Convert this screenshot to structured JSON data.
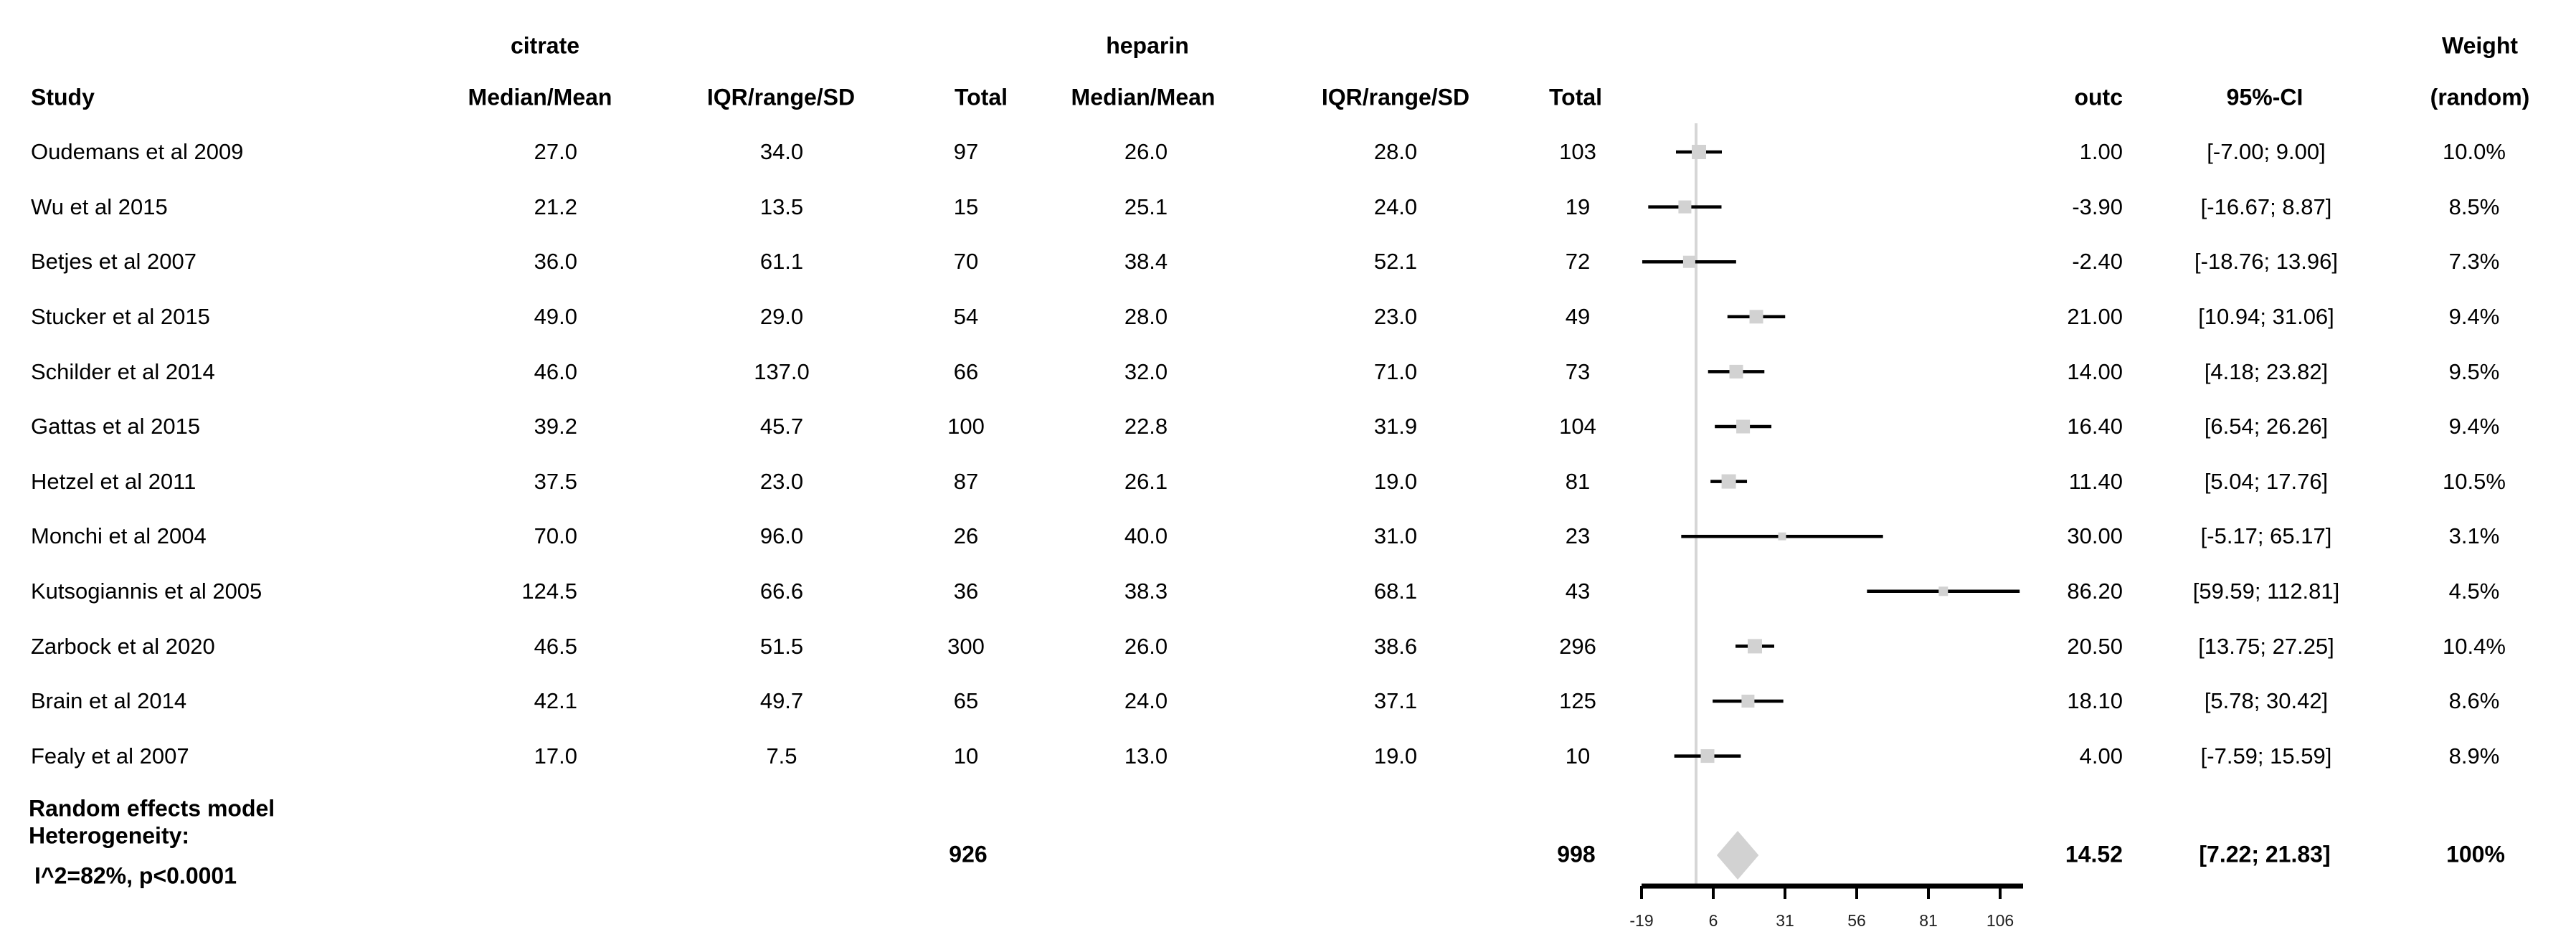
{
  "header": {
    "group_citrate": "citrate",
    "group_heparin": "heparin",
    "weight_line1": "Weight",
    "weight_line2": "(random)",
    "study": "Study",
    "citrate_median_mean": "Median/Mean",
    "citrate_iqr": "IQR/range/SD",
    "citrate_total": "Total",
    "heparin_median_mean": "Median/Mean",
    "heparin_iqr": "IQR/range/SD",
    "heparin_total": "Total",
    "outc": "outc",
    "ci": "95%-CI"
  },
  "studies": [
    {
      "name": "Oudemans et al 2009",
      "citrate_mm": "27.0",
      "citrate_iqr": "34.0",
      "citrate_total": "97",
      "heparin_mm": "26.0",
      "heparin_iqr": "28.0",
      "heparin_total": "103",
      "outc": "1.00",
      "ci": "[-7.00; 9.00]",
      "weight": "10.0%"
    },
    {
      "name": "Wu et al 2015",
      "citrate_mm": "21.2",
      "citrate_iqr": "13.5",
      "citrate_total": "15",
      "heparin_mm": "25.1",
      "heparin_iqr": "24.0",
      "heparin_total": "19",
      "outc": "-3.90",
      "ci": "[-16.67; 8.87]",
      "weight": "8.5%"
    },
    {
      "name": "Betjes et al 2007",
      "citrate_mm": "36.0",
      "citrate_iqr": "61.1",
      "citrate_total": "70",
      "heparin_mm": "38.4",
      "heparin_iqr": "52.1",
      "heparin_total": "72",
      "outc": "-2.40",
      "ci": "[-18.76; 13.96]",
      "weight": "7.3%"
    },
    {
      "name": "Stucker et al 2015",
      "citrate_mm": "49.0",
      "citrate_iqr": "29.0",
      "citrate_total": "54",
      "heparin_mm": "28.0",
      "heparin_iqr": "23.0",
      "heparin_total": "49",
      "outc": "21.00",
      "ci": "[10.94; 31.06]",
      "weight": "9.4%"
    },
    {
      "name": "Schilder et al 2014",
      "citrate_mm": "46.0",
      "citrate_iqr": "137.0",
      "citrate_total": "66",
      "heparin_mm": "32.0",
      "heparin_iqr": "71.0",
      "heparin_total": "73",
      "outc": "14.00",
      "ci": "[4.18; 23.82]",
      "weight": "9.5%"
    },
    {
      "name": "Gattas et al 2015",
      "citrate_mm": "39.2",
      "citrate_iqr": "45.7",
      "citrate_total": "100",
      "heparin_mm": "22.8",
      "heparin_iqr": "31.9",
      "heparin_total": "104",
      "outc": "16.40",
      "ci": "[6.54; 26.26]",
      "weight": "9.4%"
    },
    {
      "name": "Hetzel et al 2011",
      "citrate_mm": "37.5",
      "citrate_iqr": "23.0",
      "citrate_total": "87",
      "heparin_mm": "26.1",
      "heparin_iqr": "19.0",
      "heparin_total": "81",
      "outc": "11.40",
      "ci": "[5.04; 17.76]",
      "weight": "10.5%"
    },
    {
      "name": "Monchi et al 2004",
      "citrate_mm": "70.0",
      "citrate_iqr": "96.0",
      "citrate_total": "26",
      "heparin_mm": "40.0",
      "heparin_iqr": "31.0",
      "heparin_total": "23",
      "outc": "30.00",
      "ci": "[-5.17; 65.17]",
      "weight": "3.1%"
    },
    {
      "name": "Kutsogiannis et al 2005",
      "citrate_mm": "124.5",
      "citrate_iqr": "66.6",
      "citrate_total": "36",
      "heparin_mm": "38.3",
      "heparin_iqr": "68.1",
      "heparin_total": "43",
      "outc": "86.20",
      "ci": "[59.59; 112.81]",
      "weight": "4.5%"
    },
    {
      "name": "Zarbock et al 2020",
      "citrate_mm": "46.5",
      "citrate_iqr": "51.5",
      "citrate_total": "300",
      "heparin_mm": "26.0",
      "heparin_iqr": "38.6",
      "heparin_total": "296",
      "outc": "20.50",
      "ci": "[13.75; 27.25]",
      "weight": "10.4%"
    },
    {
      "name": "Brain et al 2014",
      "citrate_mm": "42.1",
      "citrate_iqr": "49.7",
      "citrate_total": "65",
      "heparin_mm": "24.0",
      "heparin_iqr": "37.1",
      "heparin_total": "125",
      "outc": "18.10",
      "ci": "[5.78; 30.42]",
      "weight": "8.6%"
    },
    {
      "name": "Fealy et al 2007",
      "citrate_mm": "17.0",
      "citrate_iqr": "7.5",
      "citrate_total": "10",
      "heparin_mm": "13.0",
      "heparin_iqr": "19.0",
      "heparin_total": "10",
      "outc": "4.00",
      "ci": "[-7.59; 15.59]",
      "weight": "8.9%"
    }
  ],
  "summary": {
    "model_label": "Random effects model",
    "heterogeneity_label": "Heterogeneity:",
    "heterogeneity_stats": "I^2=82%, p<0.0001",
    "citrate_total": "926",
    "heparin_total": "998",
    "outc": "14.52",
    "ci": "[7.22; 21.83]",
    "weight": "100%"
  },
  "chart_data": {
    "type": "forest",
    "title": "",
    "xlabel": "",
    "effect_measure": "mean difference (outc)",
    "groups": [
      "citrate",
      "heparin"
    ],
    "reference_value": 0,
    "x_ticks": [
      -19,
      6,
      31,
      56,
      81,
      106
    ],
    "xlim": [
      -19,
      114
    ],
    "studies": [
      {
        "name": "Oudemans et al 2009",
        "estimate": 1.0,
        "ci_low": -7.0,
        "ci_high": 9.0,
        "weight_pct": 10.0
      },
      {
        "name": "Wu et al 2015",
        "estimate": -3.9,
        "ci_low": -16.67,
        "ci_high": 8.87,
        "weight_pct": 8.5
      },
      {
        "name": "Betjes et al 2007",
        "estimate": -2.4,
        "ci_low": -18.76,
        "ci_high": 13.96,
        "weight_pct": 7.3
      },
      {
        "name": "Stucker et al 2015",
        "estimate": 21.0,
        "ci_low": 10.94,
        "ci_high": 31.06,
        "weight_pct": 9.4
      },
      {
        "name": "Schilder et al 2014",
        "estimate": 14.0,
        "ci_low": 4.18,
        "ci_high": 23.82,
        "weight_pct": 9.5
      },
      {
        "name": "Gattas et al 2015",
        "estimate": 16.4,
        "ci_low": 6.54,
        "ci_high": 26.26,
        "weight_pct": 9.4
      },
      {
        "name": "Hetzel et al 2011",
        "estimate": 11.4,
        "ci_low": 5.04,
        "ci_high": 17.76,
        "weight_pct": 10.5
      },
      {
        "name": "Monchi et al 2004",
        "estimate": 30.0,
        "ci_low": -5.17,
        "ci_high": 65.17,
        "weight_pct": 3.1
      },
      {
        "name": "Kutsogiannis et al 2005",
        "estimate": 86.2,
        "ci_low": 59.59,
        "ci_high": 112.81,
        "weight_pct": 4.5
      },
      {
        "name": "Zarbock et al 2020",
        "estimate": 20.5,
        "ci_low": 13.75,
        "ci_high": 27.25,
        "weight_pct": 10.4
      },
      {
        "name": "Brain et al 2014",
        "estimate": 18.1,
        "ci_low": 5.78,
        "ci_high": 30.42,
        "weight_pct": 8.6
      },
      {
        "name": "Fealy et al 2007",
        "estimate": 4.0,
        "ci_low": -7.59,
        "ci_high": 15.59,
        "weight_pct": 8.9
      }
    ],
    "summary": {
      "estimate": 14.52,
      "ci_low": 7.22,
      "ci_high": 21.83,
      "weight_pct": 100
    },
    "totals": {
      "citrate": 926,
      "heparin": 998
    },
    "heterogeneity": {
      "I2_pct": 82,
      "p": "<0.0001"
    },
    "marker_color": "#d2d2d2",
    "diamond_color": "#d2d2d2",
    "ci_line_color": "#000000",
    "ref_line_color": "#d6d6d6",
    "axis_color": "#000000"
  }
}
